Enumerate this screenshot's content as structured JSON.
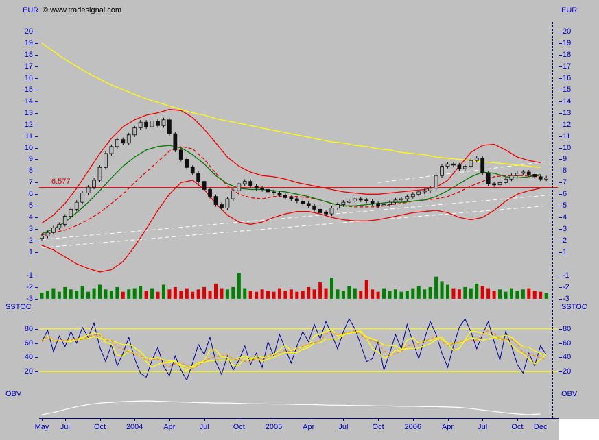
{
  "labels": {
    "currency": "EUR",
    "copyright": "© www.tradesignal.com",
    "sstoc": "SSTOC",
    "obv": "OBV",
    "level": "6.577"
  },
  "colors": {
    "background": "#c0c0c0",
    "axis_text": "#0000cc",
    "axis_line": "#000080",
    "long_ma": "#ffff00",
    "medium_ma": "#007700",
    "bands": "#ee0000",
    "level_line": "#ff0000",
    "trendlines": "#ffffff",
    "volume_up": "#008000",
    "volume_down": "#dd0000",
    "stochastic_k": "#000099",
    "stochastic_d": "#ffff00",
    "stochastic_signal": "#ff8800",
    "obv_line": "#ffffff"
  },
  "chart_data": [
    {
      "type": "candlestick",
      "name": "Price",
      "unit": "EUR",
      "ylim": [
        -3,
        20
      ],
      "yticks": [
        20,
        19,
        18,
        17,
        16,
        15,
        14,
        13,
        12,
        11,
        10,
        9,
        8,
        7,
        6,
        5,
        4,
        3,
        2,
        1,
        -1,
        -2,
        -3
      ],
      "level_line": {
        "value": 6.577,
        "label": "6.577",
        "color": "#ff0000"
      },
      "x_labels": [
        {
          "text": "May",
          "i": 0
        },
        {
          "text": "Jul",
          "i": 4
        },
        {
          "text": "Oct",
          "i": 10
        },
        {
          "text": "2004",
          "i": 16
        },
        {
          "text": "Apr",
          "i": 22
        },
        {
          "text": "Jul",
          "i": 28
        },
        {
          "text": "Oct",
          "i": 34
        },
        {
          "text": "2005",
          "i": 40
        },
        {
          "text": "Apr",
          "i": 46
        },
        {
          "text": "Jul",
          "i": 52
        },
        {
          "text": "Oct",
          "i": 58
        },
        {
          "text": "2006",
          "i": 64
        },
        {
          "text": "Apr",
          "i": 70
        },
        {
          "text": "Jul",
          "i": 76
        },
        {
          "text": "Oct",
          "i": 82
        },
        {
          "text": "Dec",
          "i": 86
        }
      ],
      "close": [
        2.4,
        2.7,
        3.1,
        3.4,
        4.1,
        4.7,
        5.3,
        6.1,
        6.6,
        7.2,
        8.3,
        9.5,
        10.1,
        10.7,
        10.4,
        11.1,
        11.7,
        12.2,
        11.8,
        12.3,
        11.9,
        12.4,
        11.2,
        9.8,
        9.0,
        8.3,
        7.8,
        7.1,
        6.4,
        5.8,
        5.1,
        4.8,
        5.6,
        6.3,
        6.9,
        7.1,
        6.7,
        6.5,
        6.4,
        6.2,
        6.1,
        5.9,
        5.7,
        5.6,
        5.4,
        5.2,
        5.0,
        4.7,
        4.4,
        4.3,
        4.8,
        5.1,
        5.3,
        5.4,
        5.6,
        5.5,
        5.4,
        5.2,
        5.0,
        5.1,
        5.3,
        5.5,
        5.6,
        5.8,
        6.0,
        6.2,
        6.3,
        6.5,
        7.6,
        8.4,
        8.6,
        8.5,
        8.2,
        8.4,
        8.9,
        9.1,
        7.8,
        6.9,
        6.8,
        7.0,
        7.3,
        7.6,
        7.8,
        7.9,
        7.7,
        7.5,
        7.3,
        7.4
      ],
      "overlays": [
        {
          "name": "long-ma",
          "color": "#ffff00",
          "x_step": 2,
          "values": [
            19.0,
            18.3,
            17.6,
            17.0,
            16.4,
            15.9,
            15.4,
            15.0,
            14.6,
            14.2,
            13.9,
            13.6,
            13.3,
            13.0,
            12.8,
            12.5,
            12.3,
            12.1,
            11.9,
            11.7,
            11.5,
            11.3,
            11.1,
            10.9,
            10.7,
            10.5,
            10.4,
            10.2,
            10.1,
            9.9,
            9.8,
            9.6,
            9.5,
            9.4,
            9.2,
            9.1,
            9.0,
            8.9,
            8.8,
            8.7,
            8.6,
            8.5,
            8.4,
            8.3
          ]
        },
        {
          "name": "band-upper",
          "color": "#ee0000",
          "x_step": 2,
          "values": [
            3.5,
            4.2,
            5.2,
            6.5,
            8.0,
            9.5,
            10.8,
            11.8,
            12.4,
            12.8,
            13.0,
            13.3,
            13.2,
            12.6,
            11.6,
            10.4,
            9.2,
            8.4,
            7.9,
            7.6,
            7.5,
            7.3,
            7.0,
            6.8,
            6.6,
            6.4,
            6.2,
            6.1,
            6.0,
            6.0,
            6.1,
            6.2,
            6.3,
            6.4,
            6.6,
            7.2,
            8.4,
            9.6,
            10.2,
            10.3,
            9.8,
            9.2,
            8.9,
            8.7
          ]
        },
        {
          "name": "band-lower",
          "color": "#ee0000",
          "x_step": 2,
          "values": [
            1.6,
            1.2,
            0.6,
            0.0,
            -0.4,
            -0.7,
            -0.5,
            0.2,
            1.5,
            3.0,
            4.6,
            6.0,
            7.0,
            7.2,
            6.4,
            5.2,
            4.2,
            3.6,
            3.4,
            3.6,
            4.0,
            4.3,
            4.5,
            4.5,
            4.3,
            4.0,
            3.8,
            3.7,
            3.7,
            3.8,
            4.0,
            4.2,
            4.4,
            4.5,
            4.6,
            4.4,
            4.0,
            3.8,
            4.0,
            4.6,
            5.4,
            6.0,
            6.3,
            6.5
          ]
        },
        {
          "name": "band-mid",
          "color": "#ee0000",
          "dash": "5 3",
          "x_step": 2,
          "values": [
            2.5,
            2.7,
            2.9,
            3.3,
            3.8,
            4.4,
            5.2,
            6.0,
            7.0,
            7.9,
            8.8,
            9.7,
            10.1,
            9.9,
            9.0,
            7.8,
            6.7,
            6.0,
            5.7,
            5.6,
            5.8,
            5.8,
            5.8,
            5.7,
            5.5,
            5.2,
            5.0,
            4.9,
            4.9,
            4.9,
            5.1,
            5.2,
            5.4,
            5.5,
            5.6,
            5.8,
            6.2,
            6.7,
            7.1,
            7.5,
            7.6,
            7.6,
            7.6,
            7.6
          ]
        },
        {
          "name": "medium-ma",
          "color": "#007700",
          "x_step": 2,
          "values": [
            2.6,
            3.0,
            3.6,
            4.4,
            5.3,
            6.3,
            7.4,
            8.4,
            9.2,
            9.8,
            10.1,
            10.2,
            10.0,
            9.4,
            8.6,
            7.6,
            6.9,
            6.5,
            6.4,
            6.4,
            6.3,
            6.2,
            6.0,
            5.8,
            5.5,
            5.2,
            5.0,
            5.0,
            5.1,
            5.2,
            5.3,
            5.3,
            5.4,
            5.5,
            5.8,
            6.3,
            6.9,
            7.5,
            7.9,
            7.8,
            7.5,
            7.4,
            7.5,
            7.7
          ]
        }
      ],
      "trendlines": [
        {
          "color": "#ffffff",
          "dash": "6 4",
          "from": [
            0,
            1.4
          ],
          "to": [
            87,
            5.0
          ]
        },
        {
          "color": "#ffffff",
          "dash": "6 4",
          "from": [
            0,
            2.1
          ],
          "to": [
            87,
            5.9
          ]
        },
        {
          "color": "#ffffff",
          "dash": "6 4",
          "from": [
            58,
            7.0
          ],
          "to": [
            87,
            8.8
          ]
        }
      ],
      "cursor_index": 88
    },
    {
      "type": "bar",
      "name": "Volume",
      "panel": "price",
      "baseline": -3,
      "up_color": "#008000",
      "down_color": "#dd0000",
      "values": [
        0.5,
        0.7,
        0.9,
        0.6,
        1.0,
        0.8,
        0.7,
        1.1,
        0.6,
        0.9,
        1.2,
        0.8,
        0.7,
        1.0,
        0.6,
        0.8,
        0.9,
        1.1,
        0.7,
        0.9,
        0.6,
        1.2,
        0.8,
        1.0,
        0.7,
        0.9,
        0.6,
        0.8,
        1.0,
        0.7,
        1.3,
        0.9,
        0.8,
        1.0,
        2.2,
        0.9,
        0.7,
        0.6,
        0.8,
        0.7,
        0.6,
        0.9,
        0.7,
        0.8,
        0.6,
        0.7,
        1.0,
        0.8,
        1.4,
        0.9,
        1.8,
        0.8,
        0.7,
        1.1,
        0.9,
        0.7,
        1.6,
        0.8,
        0.6,
        0.9,
        0.7,
        0.8,
        0.6,
        0.7,
        0.9,
        1.1,
        0.8,
        1.0,
        1.9,
        1.5,
        1.2,
        0.9,
        0.8,
        1.0,
        0.9,
        1.3,
        1.1,
        0.9,
        0.7,
        0.8,
        0.6,
        0.9,
        0.7,
        0.8,
        0.9,
        0.7,
        0.6,
        0.5
      ]
    },
    {
      "type": "line",
      "name": "Slow Stochastic",
      "panel": "sstoc",
      "ylim": [
        0,
        100
      ],
      "yticks": [
        80,
        60,
        40,
        20
      ],
      "hlines": [
        {
          "value": 80,
          "color": "#ffff00"
        },
        {
          "value": 20,
          "color": "#ffff00"
        }
      ],
      "series": [
        {
          "name": "%K",
          "color": "#000099",
          "values": [
            62,
            78,
            48,
            70,
            55,
            76,
            60,
            82,
            68,
            88,
            54,
            34,
            58,
            28,
            46,
            68,
            38,
            18,
            12,
            36,
            54,
            28,
            14,
            42,
            22,
            8,
            32,
            58,
            44,
            68,
            34,
            16,
            42,
            22,
            36,
            56,
            30,
            46,
            26,
            62,
            42,
            72,
            52,
            32,
            56,
            76,
            62,
            86,
            66,
            90,
            72,
            52,
            76,
            94,
            80,
            58,
            34,
            38,
            62,
            22,
            46,
            72,
            52,
            86,
            62,
            38,
            66,
            90,
            72,
            46,
            26,
            56,
            82,
            94,
            76,
            52,
            72,
            90,
            62,
            36,
            76,
            56,
            30,
            18,
            46,
            28,
            56,
            44
          ]
        },
        {
          "name": "%D",
          "color": "#ffff00",
          "sma_of_k": 4
        },
        {
          "name": "%D-slow",
          "color": "#ffff00",
          "sma_of_k": 9
        },
        {
          "name": "signal",
          "color": "#ff8800",
          "dash": "4 3",
          "sma_of_k": 6
        }
      ]
    },
    {
      "type": "line",
      "name": "On Balance Volume",
      "panel": "obv",
      "series": [
        {
          "name": "OBV",
          "color": "#ffffff",
          "x_step": 2,
          "values": [
            30,
            36,
            44,
            52,
            58,
            62,
            64,
            66,
            67,
            68,
            67,
            66,
            65,
            64,
            63,
            62,
            62,
            61,
            60,
            60,
            59,
            59,
            58,
            58,
            57,
            56,
            56,
            55,
            55,
            54,
            54,
            53,
            53,
            52,
            52,
            51,
            50,
            47,
            43,
            39,
            35,
            32,
            30,
            32
          ]
        }
      ]
    }
  ]
}
